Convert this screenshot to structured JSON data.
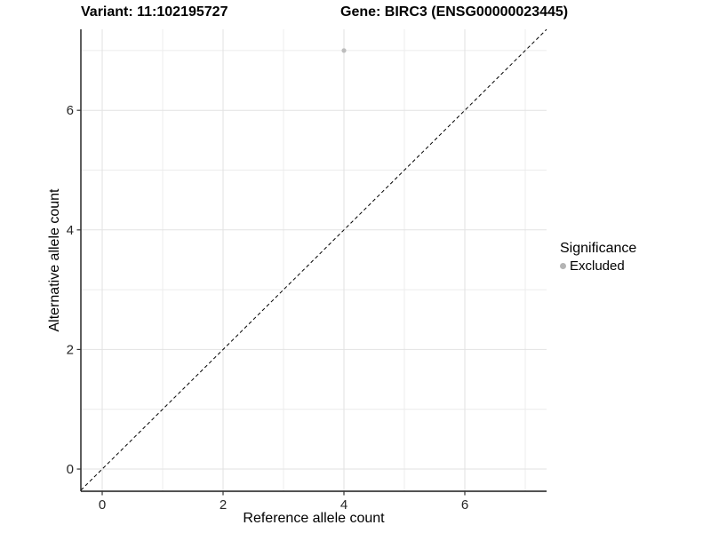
{
  "titles": {
    "variant": "Variant: 11:102195727",
    "gene": "Gene: BIRC3 (ENSG00000023445)"
  },
  "chart_data": {
    "type": "scatter",
    "xlabel": "Reference allele count",
    "ylabel": "Alternative allele count",
    "xlim": [
      -0.353,
      7.353
    ],
    "ylim": [
      -0.371,
      7.355
    ],
    "x_ticks": [
      0,
      2,
      4,
      6
    ],
    "y_ticks": [
      0,
      2,
      4,
      6
    ],
    "minor_ticks": [
      1,
      3,
      5,
      7
    ],
    "grid": true,
    "identity_line": {
      "style": "dashed",
      "from": -0.353,
      "to": 7.353
    },
    "series": [
      {
        "name": "Excluded",
        "color": "#bdbdbd",
        "points": [
          {
            "x": 4,
            "y": 7
          }
        ]
      }
    ],
    "legend": {
      "title": "Significance",
      "position": "right",
      "items": [
        {
          "label": "Excluded",
          "color": "#b4b4b4"
        }
      ]
    }
  },
  "colors": {
    "grid_major": "#e2e2e2",
    "grid_minor": "#ececec",
    "axis_line": "#1a1a1a",
    "tick": "#333333",
    "tick_label": "#262626",
    "dashed_line": "#000000",
    "background": "#ffffff"
  }
}
